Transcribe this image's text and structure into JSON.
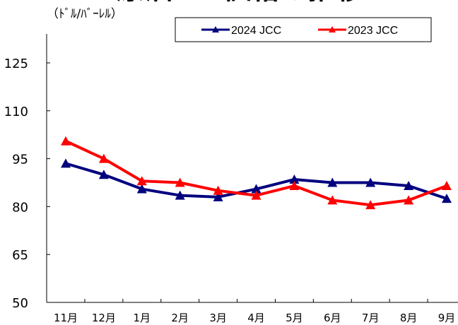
{
  "chart_data": {
    "type": "line",
    "title": "原油CIF価格の推移",
    "y_unit": "（ﾄﾞﾙ/ﾊﾞｰﾚﾙ）",
    "categories": [
      "11月",
      "12月",
      "1月",
      "2月",
      "3月",
      "4月",
      "5月",
      "6月",
      "7月",
      "8月",
      "9月"
    ],
    "yticks": [
      "125",
      "110",
      "95",
      "80",
      "65",
      "50"
    ],
    "ylim": [
      50,
      140
    ],
    "grid": false,
    "legend_position": "top-right",
    "series": [
      {
        "name": "2024 JCC",
        "color": "#00007f",
        "values": [
          93.5,
          90.0,
          85.5,
          83.5,
          83.0,
          85.5,
          88.5,
          87.5,
          87.5,
          86.5,
          82.5
        ]
      },
      {
        "name": "2023 JCC",
        "color": "#ff0000",
        "values": [
          100.5,
          95.0,
          88.0,
          87.5,
          85.0,
          83.5,
          86.5,
          82.0,
          80.5,
          82.0,
          86.5
        ]
      }
    ]
  }
}
